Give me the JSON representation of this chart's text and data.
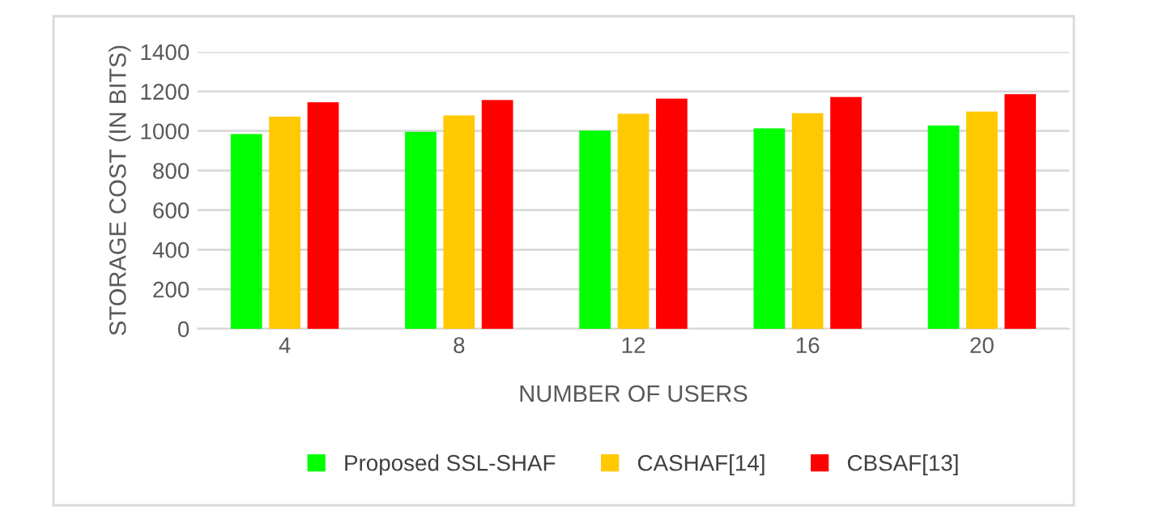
{
  "chart_data": {
    "type": "bar",
    "xlabel": "NUMBER OF USERS",
    "ylabel": "STORAGE COST (IN BITS)",
    "categories": [
      "4",
      "8",
      "12",
      "16",
      "20"
    ],
    "series": [
      {
        "name": "Proposed SSL-SHAF",
        "color": "#00ff00",
        "values": [
          985,
          996,
          1002,
          1013,
          1027
        ]
      },
      {
        "name": "CASHAF[14]",
        "color": "#ffc800",
        "values": [
          1073,
          1079,
          1087,
          1090,
          1098
        ]
      },
      {
        "name": "CBSAF[13]",
        "color": "#ff0000",
        "values": [
          1145,
          1156,
          1164,
          1172,
          1186
        ]
      }
    ],
    "ylim": [
      0,
      1400
    ],
    "yticks": [
      0,
      200,
      400,
      600,
      800,
      1000,
      1200,
      1400
    ],
    "grid": "y",
    "legend": "bottom"
  }
}
